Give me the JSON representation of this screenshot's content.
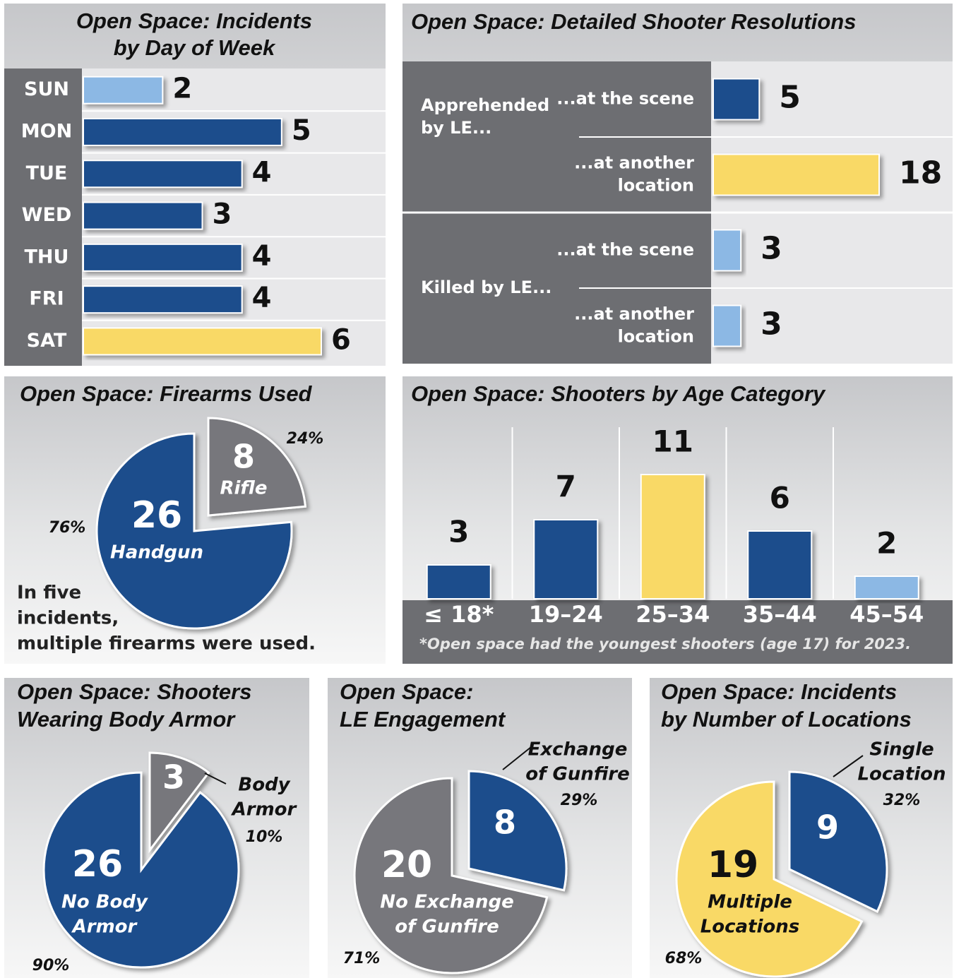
{
  "chart_data": [
    {
      "type": "bar",
      "orientation": "horizontal",
      "title": [
        "Open Space: Incidents",
        "by Day of Week"
      ],
      "categories": [
        "SUN",
        "MON",
        "TUE",
        "WED",
        "THU",
        "FRI",
        "SAT"
      ],
      "values": [
        2,
        5,
        4,
        3,
        4,
        4,
        6
      ],
      "colors": [
        "#8cb8e4",
        "#1f4e8c",
        "#1f4e8c",
        "#1f4e8c",
        "#1f4e8c",
        "#1f4e8c",
        "#f9d966"
      ]
    },
    {
      "type": "grouped_bar",
      "title": [
        "Open Space: Detailed Shooter Resolutions"
      ],
      "groups": [
        {
          "name": [
            "Apprehended",
            "by LE..."
          ],
          "categories": [
            [
              "...at the scene"
            ],
            [
              "...at another",
              "location"
            ]
          ],
          "values": [
            5,
            18
          ],
          "colors": [
            "#1f4e8c",
            "#f9d966"
          ]
        },
        {
          "name": [
            "Killed by LE..."
          ],
          "categories": [
            [
              "...at the scene"
            ],
            [
              "...at another",
              "location"
            ]
          ],
          "values": [
            3,
            3
          ],
          "colors": [
            "#8cb8e4",
            "#8cb8e4"
          ]
        }
      ]
    },
    {
      "type": "pie",
      "title": [
        "Open Space: Firearms Used"
      ],
      "labels": [
        [
          "Rifle"
        ],
        [
          "Handgun"
        ]
      ],
      "values": [
        8,
        26
      ],
      "percent_labels": [
        "24%",
        "76%"
      ],
      "colors": [
        "#77777b",
        "#1f4e8c"
      ],
      "note": [
        "In five",
        "incidents,",
        "multiple firearms were used."
      ]
    },
    {
      "type": "column",
      "title": [
        "Open Space: Shooters by Age Category"
      ],
      "categories": [
        "≤ 18*",
        "19–24",
        "25–34",
        "35–44",
        "45–54"
      ],
      "values": [
        3,
        7,
        11,
        6,
        2
      ],
      "colors": [
        "#1f4e8c",
        "#1f4e8c",
        "#f9d966",
        "#1f4e8c",
        "#8cb8e4"
      ],
      "note": "*Open space had the youngest shooters (age 17) for 2023."
    },
    {
      "type": "pie",
      "title": [
        "Open Space: Shooters",
        "Wearing Body Armor"
      ],
      "labels": [
        [
          "Body",
          "Armor"
        ],
        [
          "No Body",
          "Armor"
        ]
      ],
      "values": [
        3,
        26
      ],
      "percent_labels": [
        "10%",
        "90%"
      ],
      "colors": [
        "#77777b",
        "#1f4e8c"
      ]
    },
    {
      "type": "pie",
      "title": [
        "Open Space:",
        "LE Engagement"
      ],
      "labels": [
        [
          "Exchange",
          "of Gunfire"
        ],
        [
          "No Exchange",
          "of Gunfire"
        ]
      ],
      "values": [
        8,
        20
      ],
      "percent_labels": [
        "29%",
        "71%"
      ],
      "colors": [
        "#1f4e8c",
        "#77777b"
      ]
    },
    {
      "type": "pie",
      "title": [
        "Open Space: Incidents",
        "by Number of Locations"
      ],
      "labels": [
        [
          "Single",
          "Location"
        ],
        [
          "Multiple",
          "Locations"
        ]
      ],
      "values": [
        9,
        19
      ],
      "percent_labels": [
        "32%",
        "68%"
      ],
      "colors": [
        "#1f4e8c",
        "#f9d966"
      ]
    }
  ]
}
